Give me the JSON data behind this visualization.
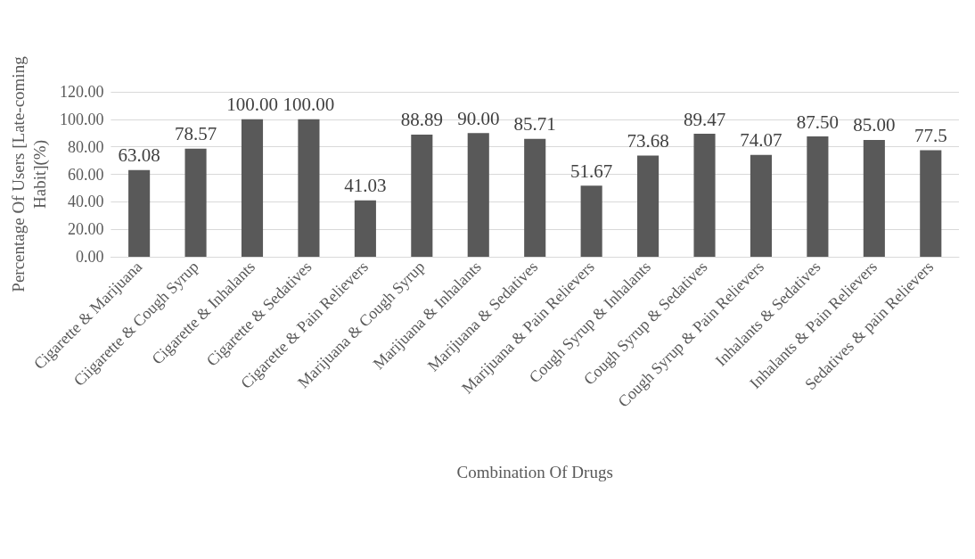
{
  "chart_data": {
    "type": "bar",
    "xlabel": "Combination Of Drugs",
    "ylabel": "Percentage Of Users [Late-coming Habit](%)",
    "categories": [
      "Cigarette & Marijuana",
      "Ciigarette & Cough Syrup",
      "Cigarette & Inhalants",
      "Cigarette & Sedatives",
      "Cigarette & Pain Relievers",
      "Marijuana & Cough Syrup",
      "Marijuana & Inhalants",
      "Marijuana & Sedatives",
      "Marijuana & Pain Relievers",
      "Cough Syrup & Inhalants",
      "Cough Syrup & Sedatives",
      "Cough Syrup & Pain Relievers",
      "Inhalants & Sedatives",
      "Inhalants & Pain Relievers",
      "Sedatives & pain Relievers"
    ],
    "values": [
      63.08,
      78.57,
      100.0,
      100.0,
      41.03,
      88.89,
      90.0,
      85.71,
      51.67,
      73.68,
      89.47,
      74.07,
      87.5,
      85.0,
      77.5
    ],
    "value_labels": [
      "63.08",
      "78.57",
      "100.00",
      "100.00",
      "41.03",
      "88.89",
      "90.00",
      "85.71",
      "51.67",
      "73.68",
      "89.47",
      "74.07",
      "87.50",
      "85.00",
      "77.5"
    ],
    "color": "#595959",
    "ylim": [
      0,
      120
    ],
    "yticks": [
      {
        "value": 0,
        "label": "0.00"
      },
      {
        "value": 20,
        "label": "20.00"
      },
      {
        "value": 40,
        "label": "40.00"
      },
      {
        "value": 60,
        "label": "60.00"
      },
      {
        "value": 80,
        "label": "80.00"
      },
      {
        "value": 100,
        "label": "100.00"
      },
      {
        "value": 120,
        "label": "120.00"
      }
    ],
    "grid": "y"
  }
}
